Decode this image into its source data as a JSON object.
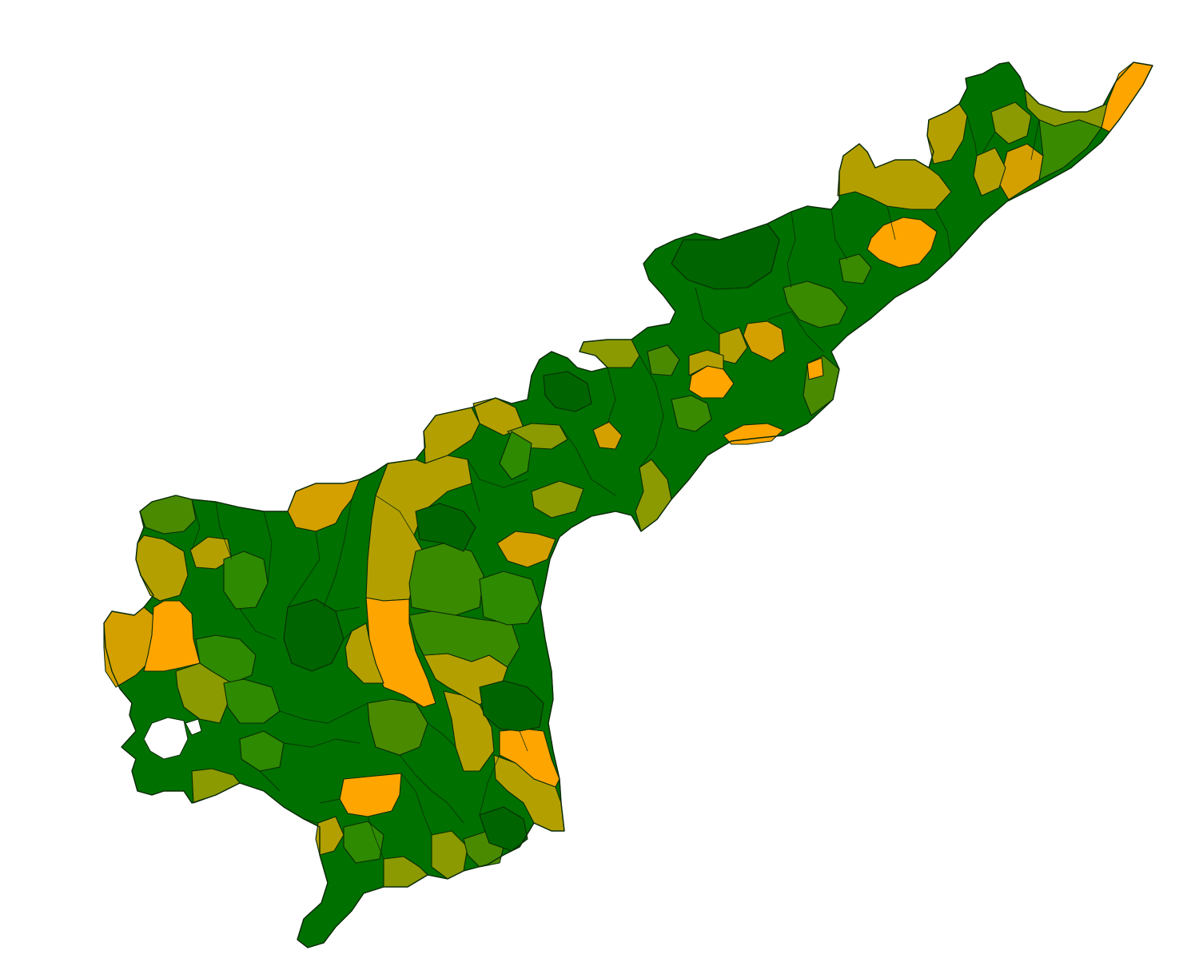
{
  "map": {
    "name": "",
    "colors": {
      "dark_green": "#006400",
      "green": "#007a00",
      "mid_green": "#2e8a00",
      "olive_green": "#4a8a00",
      "olive": "#8a9a00",
      "khaki": "#b3a000",
      "gold": "#d4a000",
      "orange": "#ffa500",
      "border": "#0b2a06",
      "background": "#ffffff"
    }
  }
}
